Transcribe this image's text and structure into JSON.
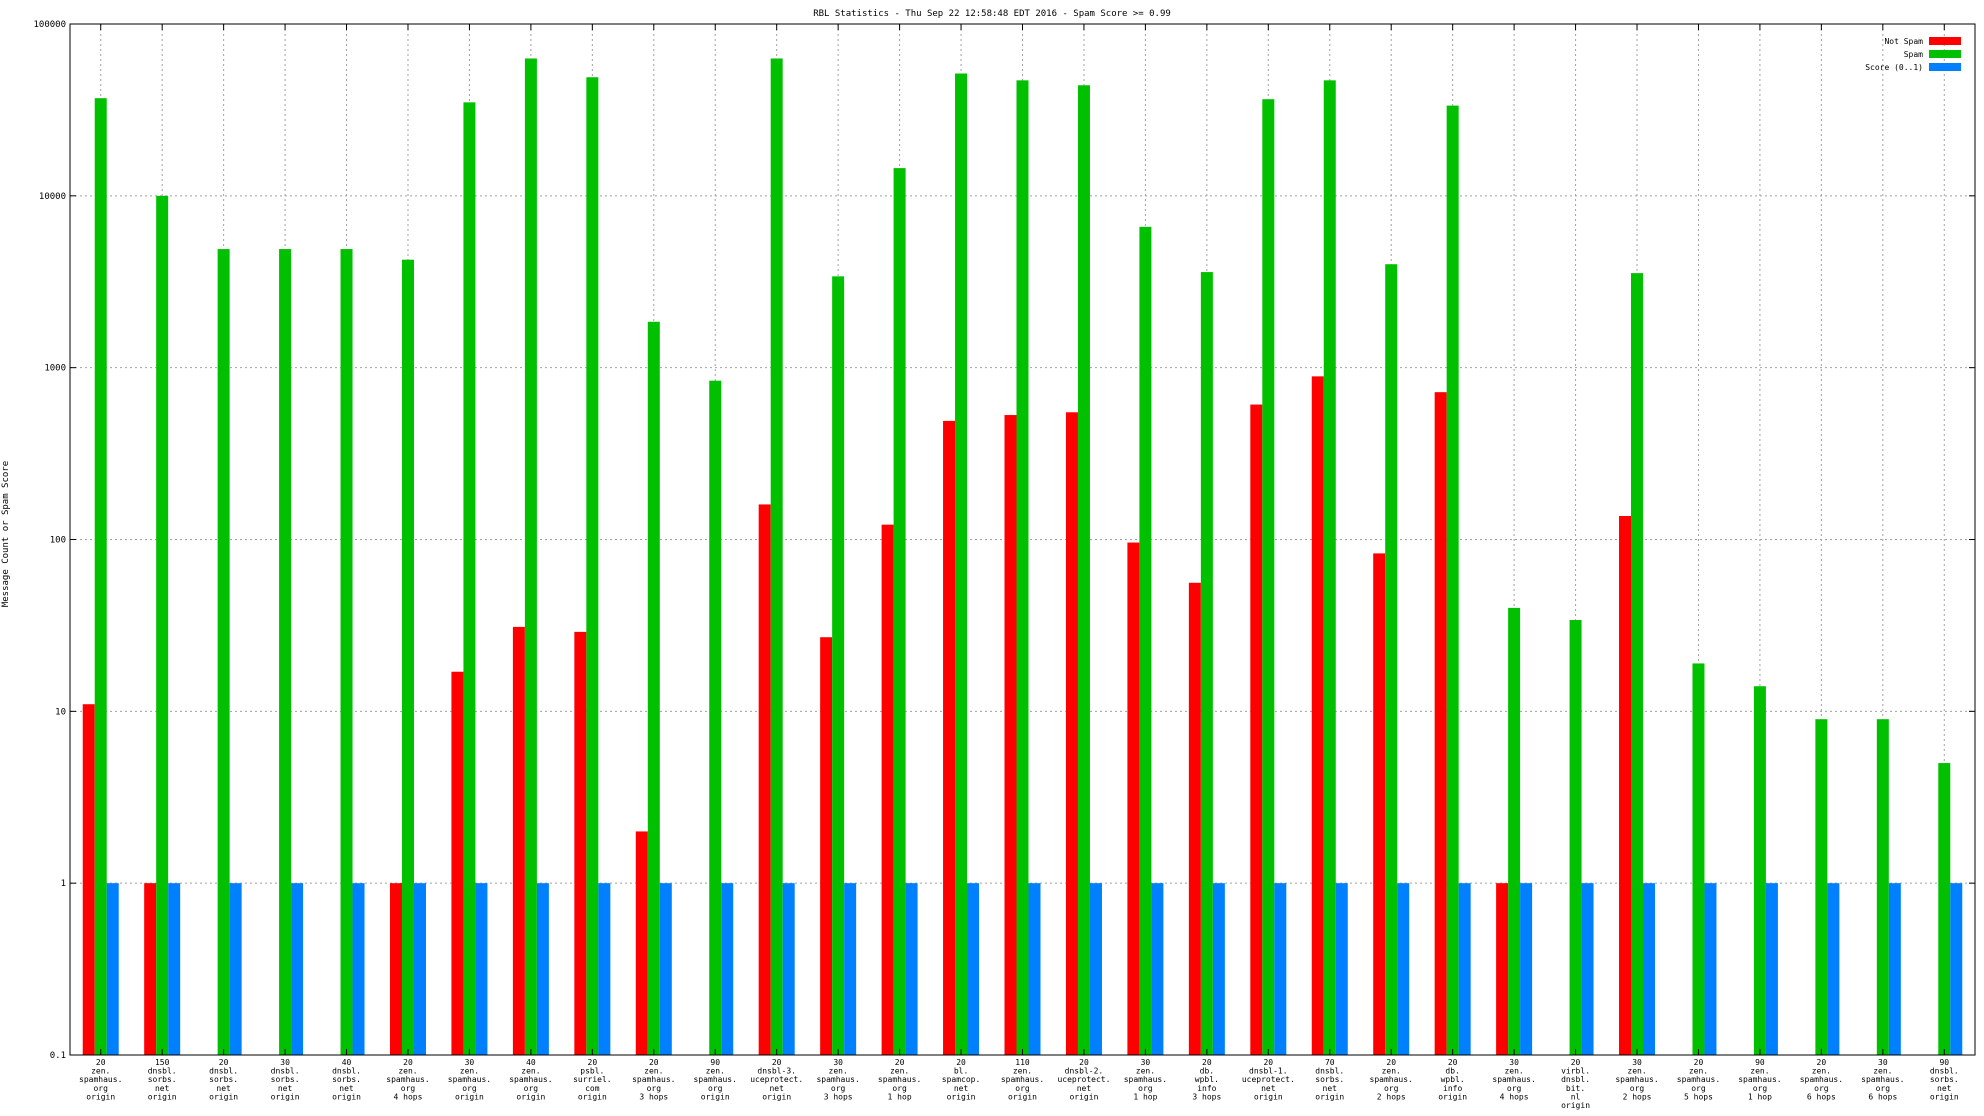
{
  "chart_data": {
    "type": "bar",
    "title": "RBL Statistics - Thu Sep 22 12:58:48 EDT 2016 - Spam Score >= 0.99",
    "xlabel": "",
    "ylabel": "Message Count or Spam Score",
    "yscale": "log",
    "ylim": [
      0.1,
      100000
    ],
    "yticks": [
      0.1,
      1,
      10,
      100,
      1000,
      10000,
      100000
    ],
    "ytick_labels": [
      "0.1",
      "1",
      "10",
      "100",
      "1000",
      "10000",
      "100000"
    ],
    "grid": true,
    "legend_position": "top-right",
    "categories": [
      [
        "20",
        "zen.",
        "spamhaus.",
        "org",
        "origin"
      ],
      [
        "150",
        "dnsbl.",
        "sorbs.",
        "net",
        "origin"
      ],
      [
        "20",
        "dnsbl.",
        "sorbs.",
        "net",
        "origin"
      ],
      [
        "30",
        "dnsbl.",
        "sorbs.",
        "net",
        "origin"
      ],
      [
        "40",
        "dnsbl.",
        "sorbs.",
        "net",
        "origin"
      ],
      [
        "20",
        "zen.",
        "spamhaus.",
        "org",
        "4 hops"
      ],
      [
        "30",
        "zen.",
        "spamhaus.",
        "org",
        "origin"
      ],
      [
        "40",
        "zen.",
        "spamhaus.",
        "org",
        "origin"
      ],
      [
        "20",
        "psbl.",
        "surriel.",
        "com",
        "origin"
      ],
      [
        "20",
        "zen.",
        "spamhaus.",
        "org",
        "3 hops"
      ],
      [
        "90",
        "zen.",
        "spamhaus.",
        "org",
        "origin"
      ],
      [
        "20",
        "dnsbl-3.",
        "uceprotect.",
        "net",
        "origin"
      ],
      [
        "30",
        "zen.",
        "spamhaus.",
        "org",
        "3 hops"
      ],
      [
        "20",
        "zen.",
        "spamhaus.",
        "org",
        "1 hop"
      ],
      [
        "20",
        "bl.",
        "spamcop.",
        "net",
        "origin"
      ],
      [
        "110",
        "zen.",
        "spamhaus.",
        "org",
        "origin"
      ],
      [
        "20",
        "dnsbl-2.",
        "uceprotect.",
        "net",
        "origin"
      ],
      [
        "30",
        "zen.",
        "spamhaus.",
        "org",
        "1 hop"
      ],
      [
        "20",
        "db.",
        "wpbl.",
        "info",
        "3 hops"
      ],
      [
        "20",
        "dnsbl-1.",
        "uceprotect.",
        "net",
        "origin"
      ],
      [
        "70",
        "dnsbl.",
        "sorbs.",
        "net",
        "origin"
      ],
      [
        "20",
        "zen.",
        "spamhaus.",
        "org",
        "2 hops"
      ],
      [
        "20",
        "db.",
        "wpbl.",
        "info",
        "origin"
      ],
      [
        "30",
        "zen.",
        "spamhaus.",
        "org",
        "4 hops"
      ],
      [
        "20",
        "virbl.",
        "dnsbl.",
        "bit.",
        "nl",
        "origin"
      ],
      [
        "30",
        "zen.",
        "spamhaus.",
        "org",
        "2 hops"
      ],
      [
        "20",
        "zen.",
        "spamhaus.",
        "org",
        "5 hops"
      ],
      [
        "90",
        "zen.",
        "spamhaus.",
        "org",
        "1 hop"
      ],
      [
        "20",
        "zen.",
        "spamhaus.",
        "org",
        "6 hops"
      ],
      [
        "30",
        "zen.",
        "spamhaus.",
        "org",
        "6 hops"
      ],
      [
        "90",
        "dnsbl.",
        "sorbs.",
        "net",
        "origin"
      ]
    ],
    "series": [
      {
        "name": "Not Spam",
        "color": "#ff0000",
        "values": [
          11,
          1,
          null,
          null,
          null,
          1,
          17,
          31,
          29,
          2,
          null,
          160,
          27,
          122,
          490,
          530,
          550,
          96,
          56,
          610,
          890,
          83,
          720,
          1,
          null,
          137,
          null,
          null,
          null,
          null,
          null
        ]
      },
      {
        "name": "Spam",
        "color": "#00c000",
        "values": [
          37000,
          10000,
          4900,
          4900,
          4900,
          4250,
          35000,
          63000,
          49000,
          1850,
          840,
          63000,
          3400,
          14500,
          51500,
          47000,
          44000,
          6600,
          3600,
          36500,
          47000,
          4000,
          33500,
          40,
          34,
          3550,
          19,
          14,
          9,
          9,
          5
        ]
      },
      {
        "name": "Score (0..1)",
        "color": "#0080ff",
        "values": [
          1,
          1,
          1,
          1,
          1,
          1,
          1,
          1,
          1,
          1,
          1,
          1,
          1,
          1,
          1,
          1,
          1,
          1,
          1,
          1,
          1,
          1,
          1,
          1,
          1,
          1,
          1,
          1,
          1,
          1,
          1
        ]
      }
    ]
  }
}
